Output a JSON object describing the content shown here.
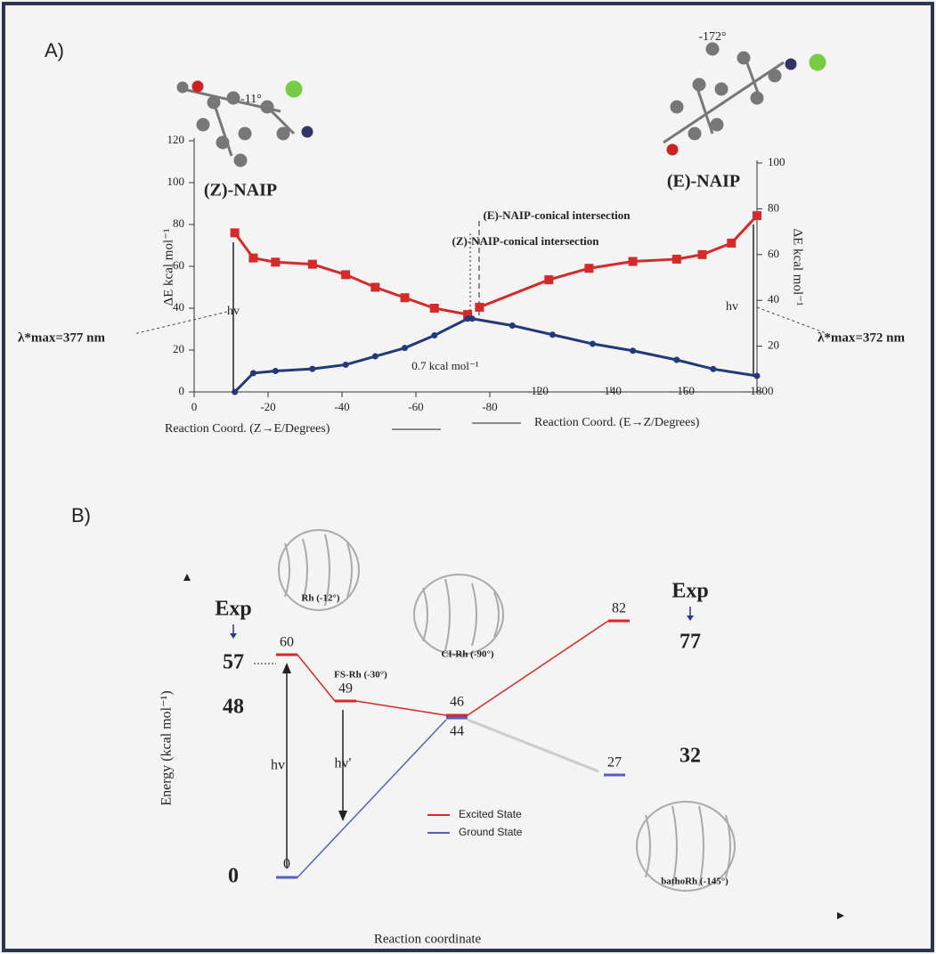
{
  "chart_data": [
    {
      "type": "line",
      "panel": "A)",
      "ylabel": "ΔE kcal mol⁻¹",
      "y2label": "ΔE kcal mol⁻¹",
      "xlabel": "Reaction Coord. (Z→E/Degrees)",
      "x2label": "Reaction Coord. (E→Z/Degrees)",
      "xlim": [
        0,
        -80
      ],
      "xticks": [
        0,
        -20,
        -40,
        -60,
        -80
      ],
      "x2lim": [
        -100,
        -180
      ],
      "x2ticks": [
        -120,
        -140,
        -160,
        -180
      ],
      "ylim": [
        0,
        120
      ],
      "yticks": [
        0,
        20,
        40,
        60,
        80,
        100,
        120
      ],
      "y2lim": [
        0,
        100
      ],
      "y2ticks": [
        0,
        20,
        40,
        60,
        80,
        100
      ],
      "series": [
        {
          "color": "#d42a2a",
          "marker": "square",
          "x": [
            -11,
            -16,
            -22,
            -32,
            -41,
            -49,
            -57,
            -65,
            -74
          ],
          "values": [
            76,
            64,
            62,
            61,
            56,
            50,
            45,
            40,
            37
          ]
        },
        {
          "color": "#233a7a",
          "marker": "circle",
          "x": [
            -11,
            -16,
            -22,
            -32,
            -41,
            -49,
            -57,
            -65,
            -74
          ],
          "values": [
            0,
            9,
            10,
            11,
            13,
            17,
            21,
            27,
            35
          ]
        },
        {
          "color": "#d42a2a",
          "marker": "square",
          "xaxis": "x2",
          "axis": "y2",
          "x": [
            -104,
            -123,
            -134,
            -146,
            -158,
            -165,
            -173,
            -180
          ],
          "values": [
            37,
            49,
            54,
            57,
            58,
            60,
            65,
            77
          ]
        },
        {
          "color": "#233a7a",
          "marker": "circle",
          "xaxis": "x2",
          "axis": "y2",
          "x": [
            -102,
            -113,
            -124,
            -135,
            -146,
            -158,
            -168,
            -180
          ],
          "values": [
            32,
            29,
            25,
            21,
            18,
            14,
            10,
            7
          ]
        }
      ],
      "annotations": [
        "(Z)-NAIP",
        "(E)-NAIP",
        "(E)-NAIP-conical intersection",
        "(Z)-NAIP-conical intersection",
        "hv",
        "hv",
        "λ*max=377 nm",
        "λ*max=372 nm",
        "0.7 kcal mol⁻¹",
        "-11°",
        "-172°"
      ]
    },
    {
      "type": "energy-diagram",
      "panel": "B)",
      "ylabel": "Energy (kcal mol⁻¹)",
      "xlabel": "Reaction coordinate",
      "series": [
        {
          "name": "Excited State",
          "color": "#d42a2a",
          "values": [
            60,
            49,
            46,
            82
          ]
        },
        {
          "name": "Ground State",
          "color": "#5560c0",
          "values": [
            0,
            44,
            27
          ]
        }
      ],
      "experiment": [
        {
          "label": "Exp",
          "values": [
            57,
            48,
            0
          ]
        },
        {
          "label": "Exp",
          "values": [
            77,
            32
          ]
        }
      ],
      "structures": [
        "Rh (-12°)",
        "FS-Rh (-30°)",
        "CI-Rh (-90°)",
        "bathoRh (-145°)"
      ],
      "annotations": [
        "hv",
        "hv'"
      ]
    }
  ]
}
